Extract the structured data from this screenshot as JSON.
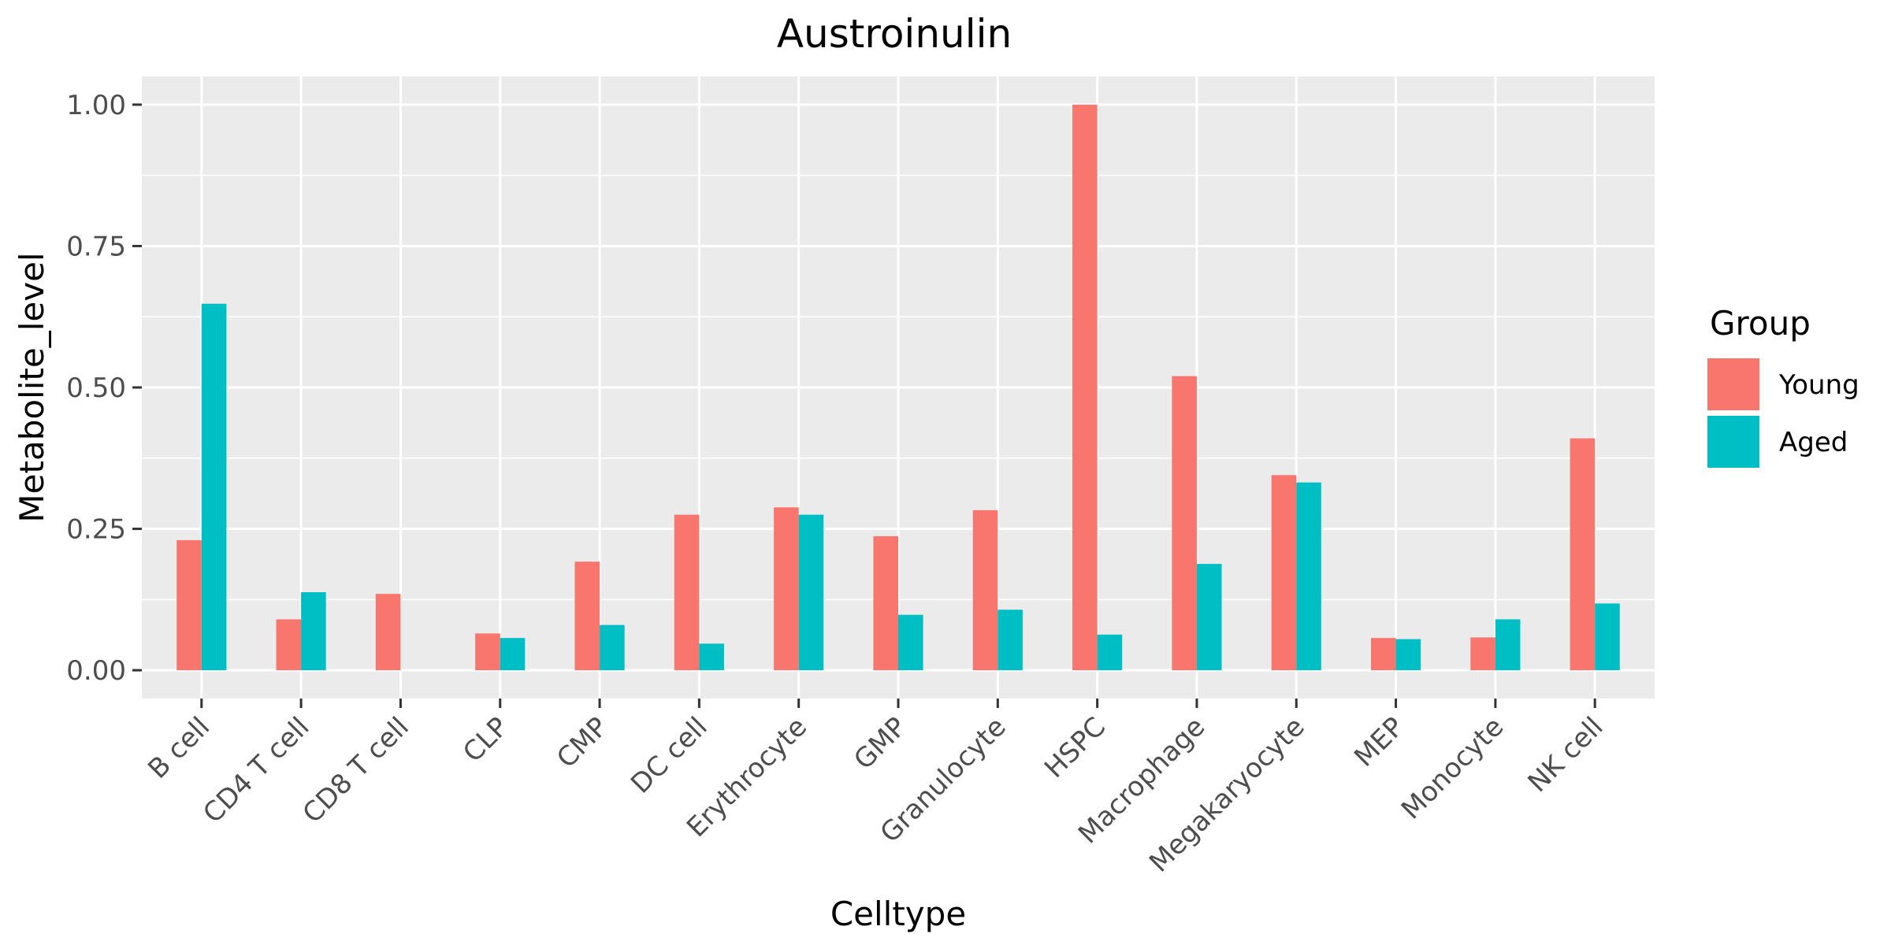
{
  "chart_data": {
    "type": "bar",
    "title": "Austroinulin",
    "xlabel": "Celltype",
    "ylabel": "Metabolite_level",
    "ylim": [
      -0.05,
      1.05
    ],
    "yticks": [
      0.0,
      0.25,
      0.5,
      0.75,
      1.0
    ],
    "ytick_labels": [
      "0.00",
      "0.25",
      "0.50",
      "0.75",
      "1.00"
    ],
    "grid": true,
    "legend": {
      "title": "Group",
      "placement": "right"
    },
    "categories": [
      "B cell",
      "CD4 T cell",
      "CD8 T cell",
      "CLP",
      "CMP",
      "DC cell",
      "Erythrocyte",
      "GMP",
      "Granulocyte",
      "HSPC",
      "Macrophage",
      "Megakaryocyte",
      "MEP",
      "Monocyte",
      "NK cell"
    ],
    "series": [
      {
        "name": "Young",
        "color": "#F8766D",
        "values": [
          0.23,
          0.09,
          0.135,
          0.065,
          0.192,
          0.275,
          0.288,
          0.237,
          0.283,
          1.0,
          0.52,
          0.345,
          0.057,
          0.058,
          0.41
        ]
      },
      {
        "name": "Aged",
        "color": "#00BFC4",
        "values": [
          0.648,
          0.138,
          0.0,
          0.057,
          0.08,
          0.047,
          0.275,
          0.098,
          0.107,
          0.063,
          0.188,
          0.332,
          0.055,
          0.09,
          0.118
        ]
      }
    ]
  }
}
